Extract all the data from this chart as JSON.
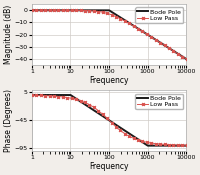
{
  "ylabel_mag": "Magnitude (dB)",
  "ylabel_phase": "Phase (Degrees)",
  "xlabel": "Frequency",
  "freq_start": 1,
  "freq_stop": 20000,
  "pole_freq": 100,
  "ylim_mag": [
    -45,
    5
  ],
  "ylim_phase": [
    -100,
    8
  ],
  "yticks_mag": [
    0,
    -10,
    -20,
    -30,
    -40
  ],
  "yticks_phase": [
    5,
    -45,
    -95
  ],
  "xticks": [
    1,
    10,
    100,
    1000,
    10000
  ],
  "lp_color": "#d9534f",
  "bode_color": "#1a1a1a",
  "lp_linewidth": 0.7,
  "bode_linewidth": 1.4,
  "lp_marker": "x",
  "lp_markersize": 2.0,
  "background_color": "#f2eeea",
  "plot_bg_color": "#ffffff",
  "grid_color": "#d0ccc8",
  "legend_fontsize": 4.5,
  "axis_label_fontsize": 5.5,
  "tick_fontsize": 4.5
}
